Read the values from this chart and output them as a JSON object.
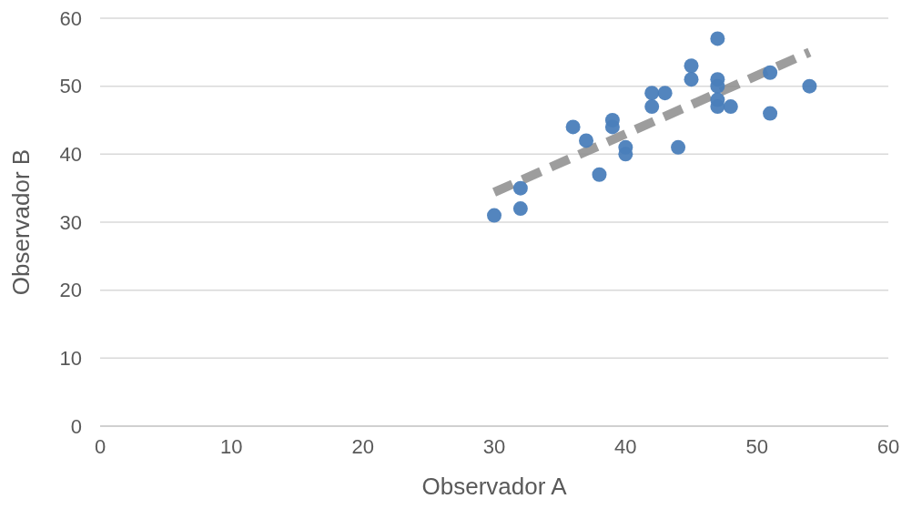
{
  "chart_data": {
    "type": "scatter",
    "xlabel": "Observador A",
    "ylabel": "Observador B",
    "xlim": [
      0,
      60
    ],
    "xticks": [
      0,
      10,
      20,
      30,
      40,
      50,
      60
    ],
    "ylim": [
      0,
      60
    ],
    "yticks": [
      0,
      10,
      20,
      30,
      40,
      50,
      60
    ],
    "grid": "y",
    "series": [
      {
        "color": "#4a7ebb",
        "marker": "circle",
        "x": [
          30,
          32,
          32,
          36,
          37,
          38,
          39,
          39,
          40,
          40,
          42,
          42,
          43,
          44,
          45,
          45,
          47,
          47,
          47,
          47,
          47,
          48,
          51,
          51,
          54
        ],
        "values": [
          31,
          35,
          32,
          44,
          42,
          37,
          45,
          44,
          41,
          40,
          49,
          47,
          49,
          41,
          53,
          51,
          57,
          51,
          50,
          48,
          47,
          47,
          52,
          46,
          50
        ]
      },
      {
        "type": "line",
        "color": "#8c8c8c",
        "marker": "none",
        "line_style": "dashed",
        "x": [
          30,
          54
        ],
        "values": [
          34.4,
          55
        ]
      }
    ]
  }
}
